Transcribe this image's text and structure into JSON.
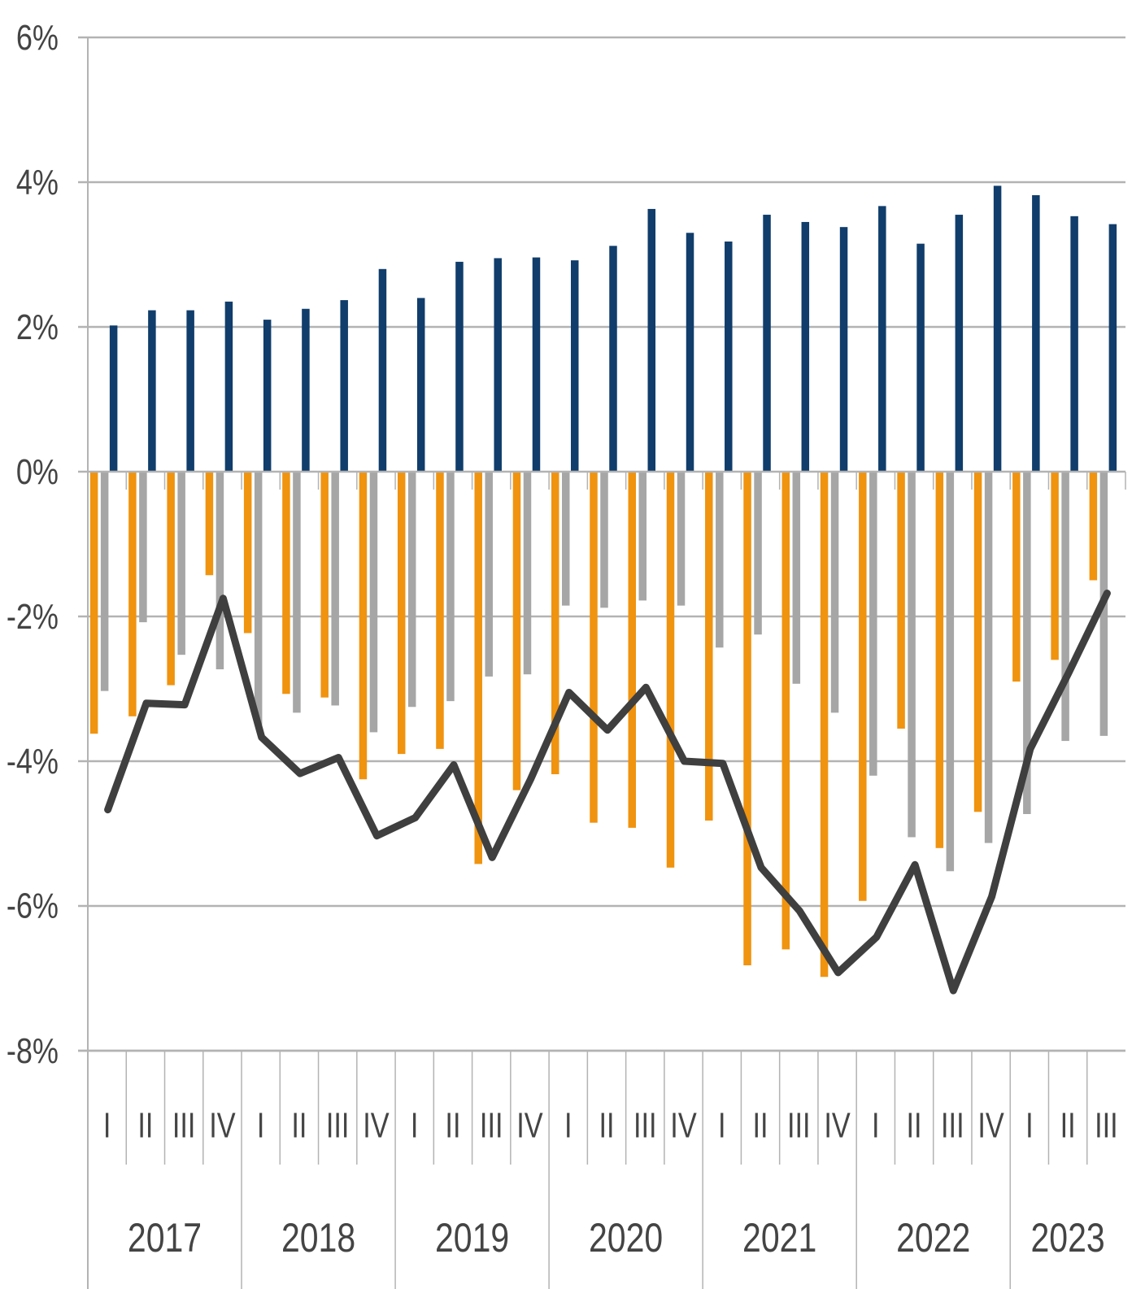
{
  "chart_data": {
    "type": "bar",
    "title": "",
    "xlabel": "",
    "ylabel": "",
    "ylim": [
      -8,
      6
    ],
    "y_ticks": [
      -8,
      -6,
      -4,
      -2,
      0,
      2,
      4,
      6
    ],
    "y_tick_labels": [
      "-8%",
      "-6%",
      "-4%",
      "-2%",
      "0%",
      "2%",
      "4%",
      "6%"
    ],
    "grid": true,
    "legend": "none",
    "years": [
      {
        "label": "2017",
        "quarters": 4
      },
      {
        "label": "2018",
        "quarters": 4
      },
      {
        "label": "2019",
        "quarters": 4
      },
      {
        "label": "2020",
        "quarters": 4
      },
      {
        "label": "2021",
        "quarters": 4
      },
      {
        "label": "2022",
        "quarters": 4
      },
      {
        "label": "2023",
        "quarters": 3
      }
    ],
    "categories": [
      "I",
      "II",
      "III",
      "IV",
      "I",
      "II",
      "III",
      "IV",
      "I",
      "II",
      "III",
      "IV",
      "I",
      "II",
      "III",
      "IV",
      "I",
      "II",
      "III",
      "IV",
      "I",
      "II",
      "III",
      "IV",
      "I",
      "II",
      "III"
    ],
    "series": [
      {
        "type": "bar",
        "color": "#f0930f",
        "values": [
          -3.62,
          -3.38,
          -2.95,
          -1.43,
          -2.23,
          -3.07,
          -3.12,
          -4.25,
          -3.9,
          -3.83,
          -5.42,
          -4.4,
          -4.18,
          -4.85,
          -4.92,
          -5.47,
          -4.82,
          -6.82,
          -6.6,
          -6.98,
          -5.93,
          -3.55,
          -5.2,
          -4.7,
          -2.9,
          -2.6,
          -1.5
        ]
      },
      {
        "type": "bar",
        "color": "#a6a6a6",
        "values": [
          -3.03,
          -2.08,
          -2.53,
          -2.73,
          -3.5,
          -3.33,
          -3.23,
          -3.6,
          -3.25,
          -3.17,
          -2.83,
          -2.8,
          -1.85,
          -1.88,
          -1.78,
          -1.85,
          -2.43,
          -2.25,
          -2.93,
          -3.33,
          -4.2,
          -5.05,
          -5.52,
          -5.13,
          -4.73,
          -3.72,
          -3.65
        ]
      },
      {
        "type": "bar",
        "color": "#103d6b",
        "values": [
          2.02,
          2.23,
          2.23,
          2.35,
          2.1,
          2.25,
          2.37,
          2.8,
          2.4,
          2.9,
          2.95,
          2.96,
          2.92,
          3.12,
          3.63,
          3.3,
          3.18,
          3.55,
          3.45,
          3.38,
          3.67,
          3.15,
          3.55,
          3.95,
          3.82,
          3.53,
          3.42
        ]
      },
      {
        "type": "line",
        "color": "#3f3f3f",
        "values": [
          -4.67,
          -3.2,
          -3.22,
          -1.75,
          -3.67,
          -4.17,
          -3.95,
          -5.03,
          -4.78,
          -4.05,
          -5.33,
          -4.25,
          -3.05,
          -3.57,
          -2.98,
          -4,
          -4.03,
          -5.47,
          -6.07,
          -6.92,
          -6.43,
          -5.43,
          -7.17,
          -5.87,
          -3.83,
          -2.78,
          -1.68
        ]
      }
    ]
  }
}
